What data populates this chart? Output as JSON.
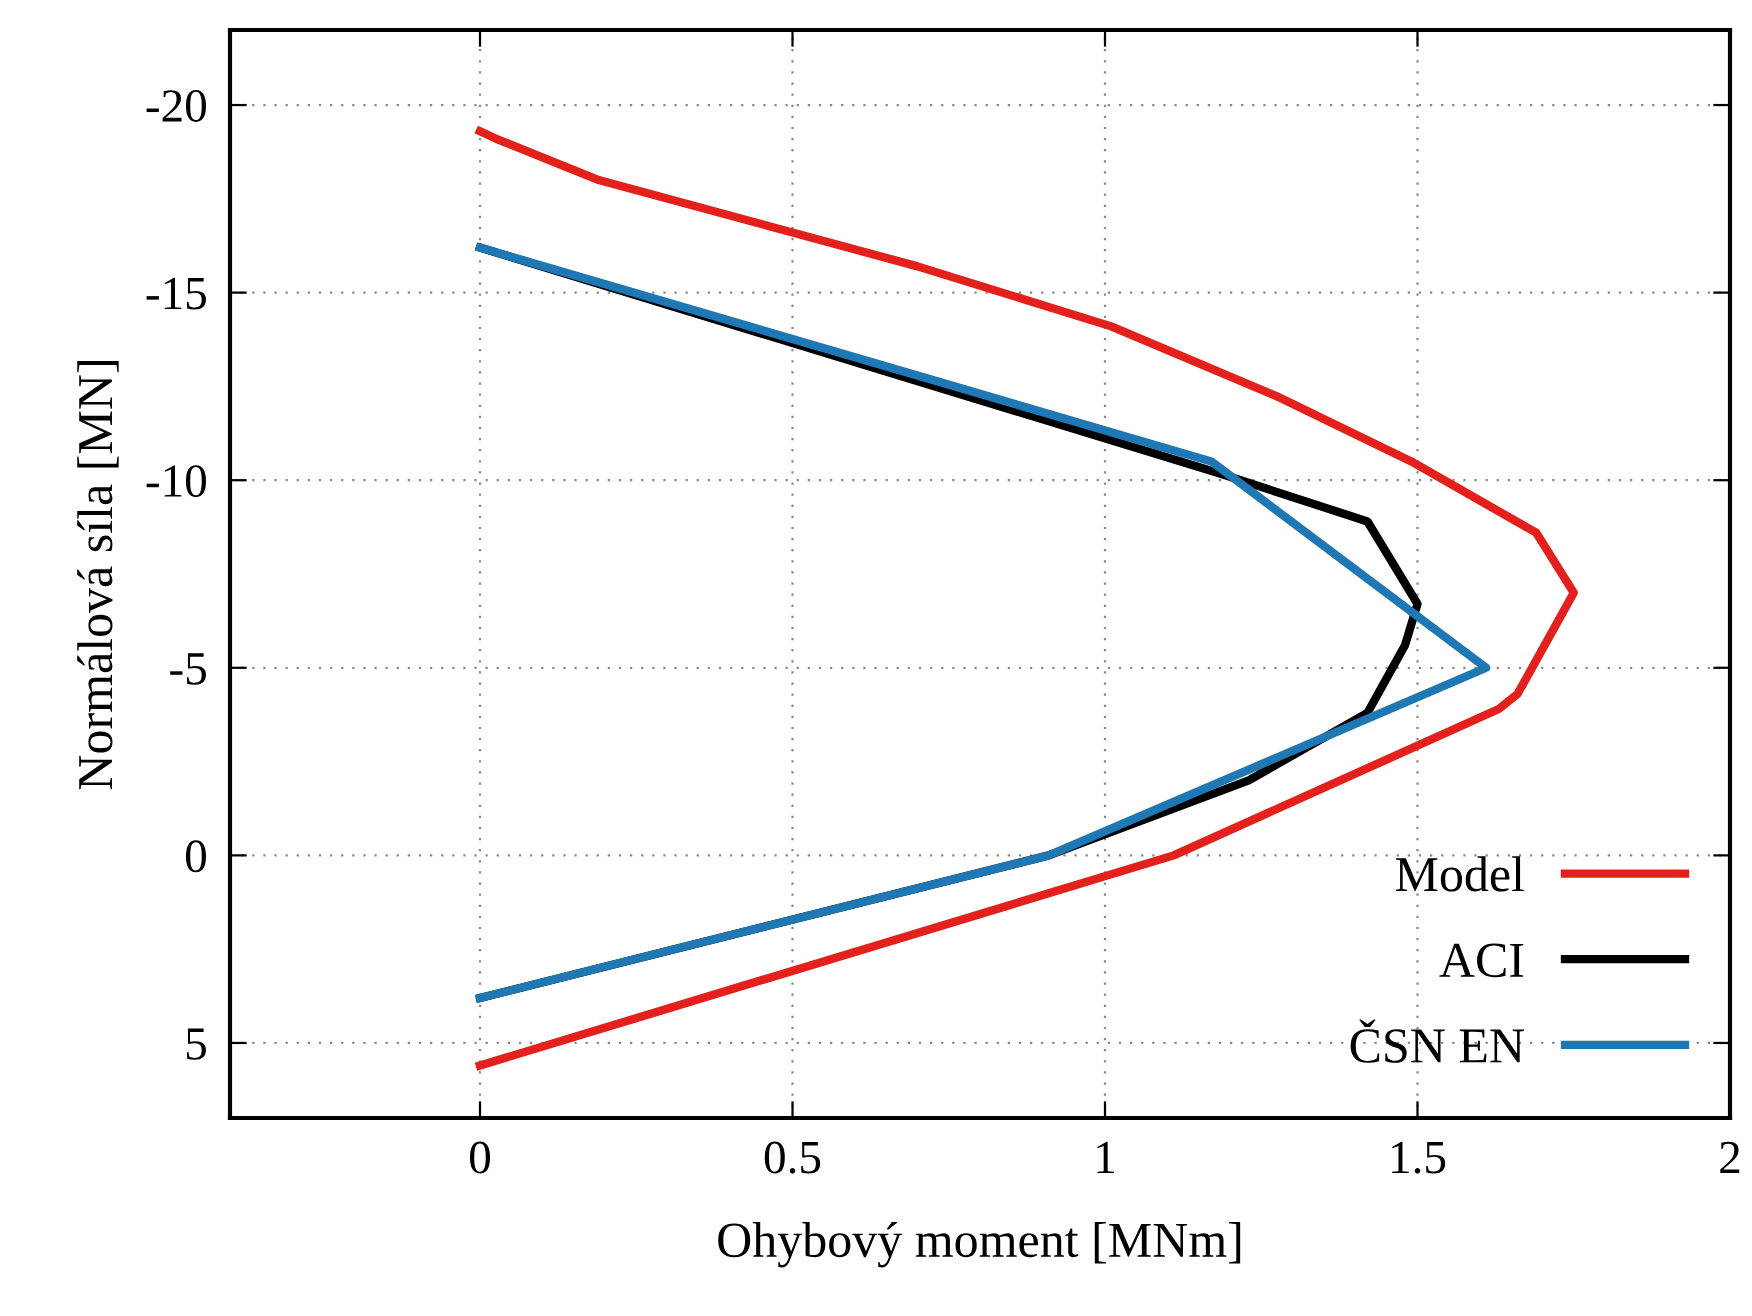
{
  "chart_data": {
    "type": "line",
    "xlabel": "Ohybový moment [MNm]",
    "ylabel": "Normálová síla [MN]",
    "xlim": [
      -0.4,
      2
    ],
    "ylim": [
      7,
      -22
    ],
    "xticks": [
      0,
      0.5,
      1,
      1.5,
      2
    ],
    "yticks": [
      -20,
      -15,
      -10,
      -5,
      0,
      5
    ],
    "grid": true,
    "legend": "bottom right",
    "line_style": "solid",
    "marker": "none",
    "series": [
      {
        "name": "Model",
        "color": "#e3201b",
        "x": [
          0,
          0.026,
          0.19,
          0.7,
          1.01,
          1.28,
          1.49,
          1.69,
          1.75,
          1.66,
          1.63,
          1.11,
          0
        ],
        "values": [
          -19.3,
          -19.1,
          -18.0,
          -15.7,
          -14.1,
          -12.2,
          -10.5,
          -8.6,
          -7.0,
          -4.3,
          -3.9,
          0,
          5.6
        ]
      },
      {
        "name": "ACI",
        "color": "#000000",
        "x": [
          0,
          1.18,
          1.42,
          1.5,
          1.48,
          1.42,
          1.23,
          0.91,
          0
        ],
        "values": [
          -16.2,
          -10.2,
          -8.9,
          -6.7,
          -5.6,
          -3.8,
          -2.0,
          0,
          3.8
        ]
      },
      {
        "name": "ČSN EN",
        "color": "#1f77b4",
        "x": [
          0,
          1.17,
          1.61,
          0.91,
          0
        ],
        "values": [
          -16.2,
          -10.5,
          -5.0,
          0,
          3.8
        ]
      }
    ]
  }
}
